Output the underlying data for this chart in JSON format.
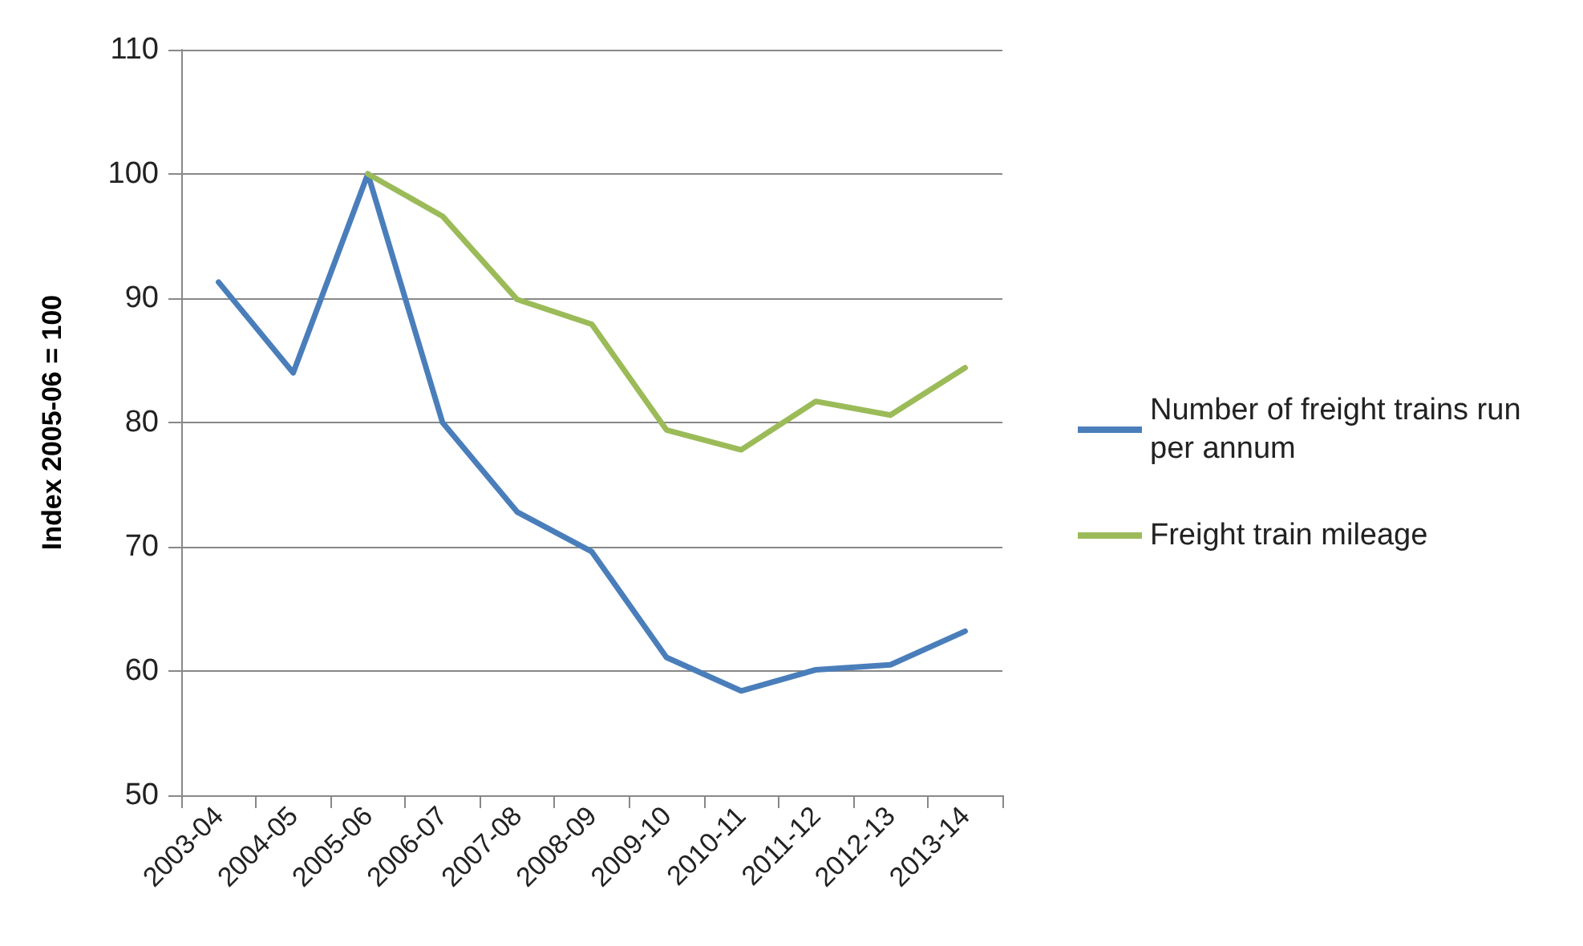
{
  "chart_data": {
    "type": "line",
    "ylabel": "Index 2005-06 = 100",
    "categories": [
      "2003-04",
      "2004-05",
      "2005-06",
      "2006-07",
      "2007-08",
      "2008-09",
      "2009-10",
      "2010-11",
      "2011-12",
      "2012-13",
      "2013-14"
    ],
    "series": [
      {
        "name": "Number of freight trains run per annum",
        "color": "#4a7ebb",
        "values": [
          91.3,
          84.0,
          100,
          80,
          72.8,
          69.6,
          61.1,
          58.4,
          60.1,
          60.5,
          63.2
        ]
      },
      {
        "name": "Freight train mileage",
        "color": "#9bbb59",
        "values": [
          null,
          null,
          100,
          96.6,
          89.9,
          87.9,
          79.4,
          77.8,
          81.7,
          80.6,
          84.4
        ]
      }
    ],
    "ylim": [
      50,
      110
    ],
    "yticks": [
      50,
      60,
      70,
      80,
      90,
      100,
      110
    ],
    "grid": "y",
    "legend": "right",
    "marker": "none",
    "line_style": "solid"
  }
}
